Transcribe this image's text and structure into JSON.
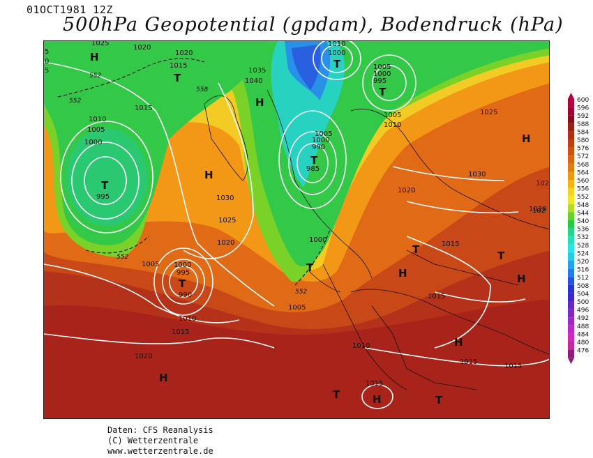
{
  "header": {
    "date": "01OCT1981 12Z",
    "title": "500hPa Geopotential (gpdam), Bodendruck (hPa)"
  },
  "footer": {
    "source": "Daten: CFS Reanalysis",
    "copyright": "(C) Wetterzentrale",
    "website": "www.wetterzentrale.de"
  },
  "legend": {
    "unit": "gpdam",
    "levels": [
      {
        "value": "600",
        "color": "#b8003c"
      },
      {
        "value": "596",
        "color": "#a00032"
      },
      {
        "value": "592",
        "color": "#8c0a1e"
      },
      {
        "value": "588",
        "color": "#a01e14"
      },
      {
        "value": "584",
        "color": "#b42d14"
      },
      {
        "value": "580",
        "color": "#c83c14"
      },
      {
        "value": "576",
        "color": "#d25014"
      },
      {
        "value": "572",
        "color": "#dc6414"
      },
      {
        "value": "568",
        "color": "#e67a14"
      },
      {
        "value": "564",
        "color": "#f09614"
      },
      {
        "value": "560",
        "color": "#f5b414"
      },
      {
        "value": "556",
        "color": "#f5d228"
      },
      {
        "value": "552",
        "color": "#f0e628"
      },
      {
        "value": "548",
        "color": "#b4dc28"
      },
      {
        "value": "544",
        "color": "#64d228"
      },
      {
        "value": "540",
        "color": "#28c846"
      },
      {
        "value": "536",
        "color": "#28d28c"
      },
      {
        "value": "532",
        "color": "#28dcbe"
      },
      {
        "value": "528",
        "color": "#28e6e6"
      },
      {
        "value": "524",
        "color": "#28c8f0"
      },
      {
        "value": "520",
        "color": "#28a0f0"
      },
      {
        "value": "516",
        "color": "#2878f0"
      },
      {
        "value": "512",
        "color": "#2850e6"
      },
      {
        "value": "508",
        "color": "#2832dc"
      },
      {
        "value": "504",
        "color": "#3c28d2"
      },
      {
        "value": "500",
        "color": "#6428c8"
      },
      {
        "value": "496",
        "color": "#8228c8"
      },
      {
        "value": "492",
        "color": "#a028c8"
      },
      {
        "value": "488",
        "color": "#be28c8"
      },
      {
        "value": "484",
        "color": "#d228be"
      },
      {
        "value": "480",
        "color": "#c8289c"
      },
      {
        "value": "476",
        "color": "#8c1e78"
      }
    ]
  },
  "map": {
    "pressure_labels": [
      "1025",
      "1020",
      "1020",
      "1015",
      "1015",
      "1035",
      "1040",
      "1010",
      "1000",
      "1005",
      "1000",
      "995",
      "1005",
      "1010",
      "1005",
      "1000",
      "995",
      "1010",
      "1005",
      "1000",
      "990",
      "985",
      "1025",
      "1030",
      "1020",
      "1030",
      "1025",
      "1020",
      "1020",
      "1000",
      "1015",
      "1005",
      "1000",
      "995",
      "990",
      "1010",
      "1015",
      "1005",
      "1010",
      "1020",
      "1015",
      "1015",
      "1015",
      "1015",
      "1015"
    ],
    "systems": [
      "H",
      "T",
      "H",
      "T",
      "H",
      "H",
      "T",
      "T",
      "H",
      "H",
      "T",
      "T",
      "T",
      "H",
      "H",
      "H",
      "H",
      "T",
      "H",
      "T",
      "H",
      "T",
      "H",
      "T"
    ],
    "height_labels": [
      "552",
      "552",
      "558",
      "552",
      "552"
    ],
    "edge_labels": [
      "5",
      "0",
      "5",
      "102",
      "102"
    ]
  }
}
